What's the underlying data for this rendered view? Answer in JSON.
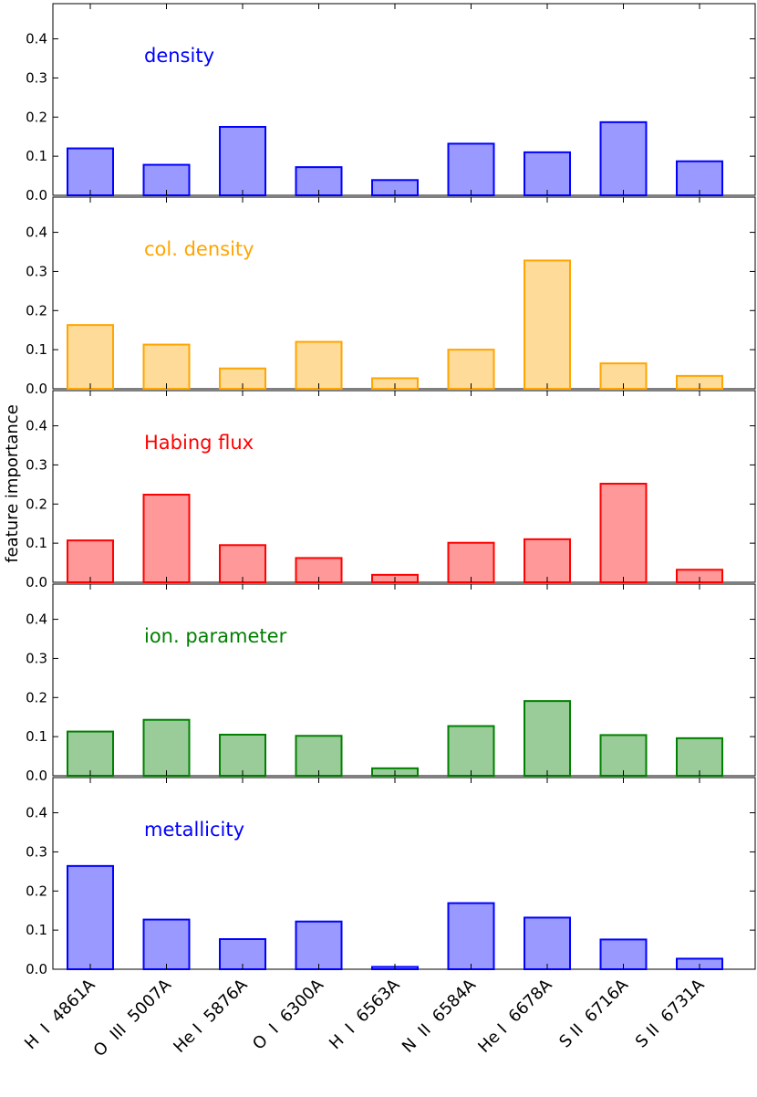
{
  "chart_data": {
    "type": "bar",
    "ylabel": "feature importance",
    "ylim": [
      0,
      0.49
    ],
    "yticks": [
      "0.0",
      "0.1",
      "0.2",
      "0.3",
      "0.4"
    ],
    "categories": [
      "H  I  4861A",
      "O  III  5007A",
      "He I  5876A",
      "O  I  6300A",
      "H  I  6563A",
      "N  II  6584A",
      "He I  6678A",
      "S II  6716A",
      "S II  6731A"
    ],
    "panels": [
      {
        "title": "density",
        "title_color": "#0000ff",
        "fill": "#9999ff",
        "edge": "#0000ff",
        "values": [
          0.12,
          0.078,
          0.175,
          0.072,
          0.039,
          0.132,
          0.11,
          0.187,
          0.087
        ]
      },
      {
        "title": "col. density",
        "title_color": "#ffa500",
        "fill": "#ffdb99",
        "edge": "#ffa500",
        "values": [
          0.163,
          0.113,
          0.052,
          0.12,
          0.027,
          0.1,
          0.328,
          0.065,
          0.033
        ]
      },
      {
        "title": "Habing flux",
        "title_color": "#ff0000",
        "fill": "#ff9999",
        "edge": "#ff0000",
        "values": [
          0.107,
          0.224,
          0.095,
          0.062,
          0.019,
          0.101,
          0.11,
          0.252,
          0.032
        ]
      },
      {
        "title": "ion. parameter",
        "title_color": "#008000",
        "fill": "#99cc99",
        "edge": "#008000",
        "values": [
          0.113,
          0.143,
          0.105,
          0.102,
          0.019,
          0.127,
          0.191,
          0.104,
          0.096
        ]
      },
      {
        "title": "metallicity",
        "title_color": "#0000ff",
        "fill": "#9999ff",
        "edge": "#0000ff",
        "values": [
          0.264,
          0.127,
          0.077,
          0.122,
          0.006,
          0.169,
          0.132,
          0.076,
          0.027
        ]
      }
    ]
  }
}
